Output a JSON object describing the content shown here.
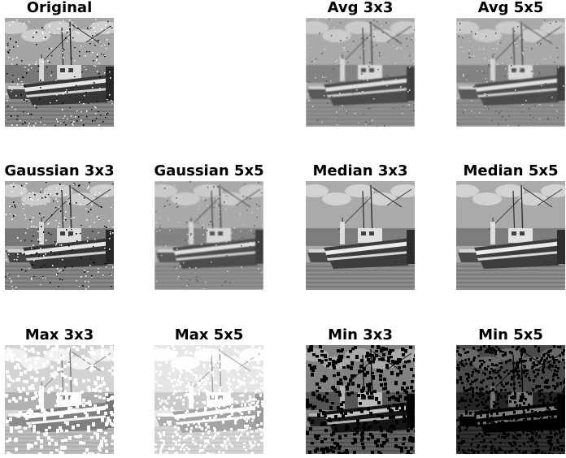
{
  "panels": [
    {
      "id": "original",
      "title": "Original",
      "filter": "noisy",
      "tone": "noisy"
    },
    {
      "id": "avg3",
      "title": "Avg 3x3",
      "filter": "avg3",
      "tone": "blur"
    },
    {
      "id": "avg5",
      "title": "Avg 5x5",
      "filter": "avg5",
      "tone": "blur"
    },
    {
      "id": "gauss3",
      "title": "Gaussian 3x3",
      "filter": "gauss3",
      "tone": "noisy"
    },
    {
      "id": "gauss5",
      "title": "Gaussian 5x5",
      "filter": "gauss5",
      "tone": "blur"
    },
    {
      "id": "median3",
      "title": "Median 3x3",
      "filter": "median3",
      "tone": "clean"
    },
    {
      "id": "median5",
      "title": "Median 5x5",
      "filter": "median5",
      "tone": "clean"
    },
    {
      "id": "max3",
      "title": "Max 3x3",
      "filter": "max3",
      "tone": "light"
    },
    {
      "id": "max5",
      "title": "Max 5x5",
      "filter": "max5",
      "tone": "lighter"
    },
    {
      "id": "min3",
      "title": "Min 3x3",
      "filter": "min3",
      "tone": "dark"
    },
    {
      "id": "min5",
      "title": "Min 5x5",
      "filter": "min5",
      "tone": "darker"
    }
  ],
  "colors": {
    "title": "#000000",
    "background": "#ffffff"
  }
}
